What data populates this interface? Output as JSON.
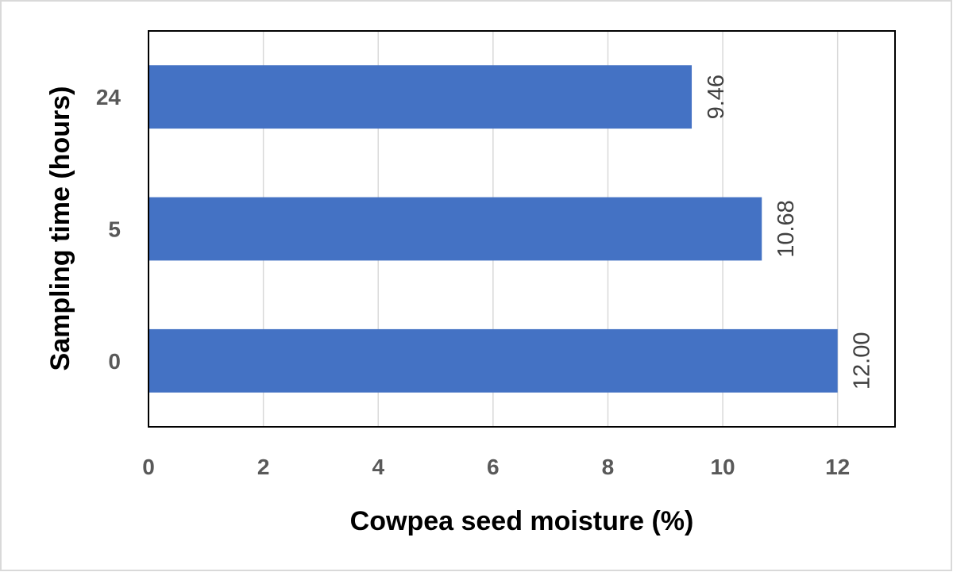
{
  "chart_data": {
    "type": "bar",
    "orientation": "horizontal",
    "title": "",
    "xlabel": "Cowpea seed moisture (%)",
    "ylabel": "Sampling time (hours)",
    "categories": [
      "0",
      "5",
      "24"
    ],
    "values": [
      12.0,
      10.68,
      9.46
    ],
    "value_labels": [
      "12.00",
      "10.68",
      "9.46"
    ],
    "xlim": [
      0,
      13
    ],
    "xticks": [
      0,
      2,
      4,
      6,
      8,
      10,
      12
    ],
    "xtick_labels": [
      "0",
      "2",
      "4",
      "6",
      "8",
      "10",
      "12"
    ],
    "grid": "vertical",
    "legend": "none",
    "bar_color": "#4472C4"
  }
}
